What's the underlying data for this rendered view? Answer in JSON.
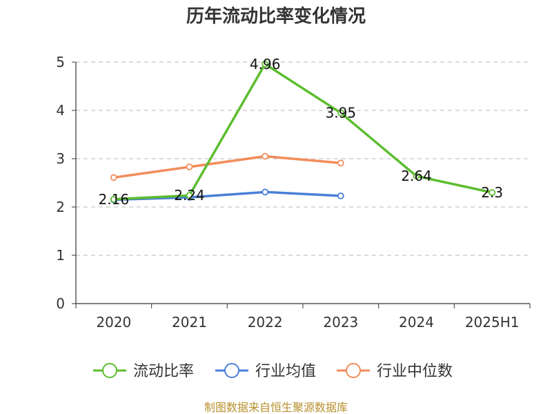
{
  "chart_data": {
    "type": "line",
    "title": "历年流动比率变化情况",
    "categories": [
      "2020",
      "2021",
      "2022",
      "2023",
      "2024",
      "2025H1"
    ],
    "ylim": [
      0,
      5
    ],
    "yticks": [
      "0",
      "1",
      "2",
      "3",
      "4",
      "5"
    ],
    "grid": true,
    "legend_position": "bottom",
    "series": [
      {
        "name": "流动比率",
        "color": "#5cbd2e",
        "values": [
          2.16,
          2.24,
          4.96,
          3.95,
          2.64,
          2.3
        ],
        "labels": [
          "2.16",
          "2.24",
          "4.96",
          "3.95",
          "2.64",
          "2.3"
        ]
      },
      {
        "name": "行业均值",
        "color": "#4a7fd8",
        "values": [
          2.15,
          2.2,
          2.31,
          2.23,
          null,
          null
        ]
      },
      {
        "name": "行业中位数",
        "color": "#f28c5a",
        "values": [
          2.61,
          2.83,
          3.05,
          2.91,
          null,
          null
        ]
      }
    ]
  },
  "footer": {
    "source": "制图数据来自恒生聚源数据库"
  }
}
